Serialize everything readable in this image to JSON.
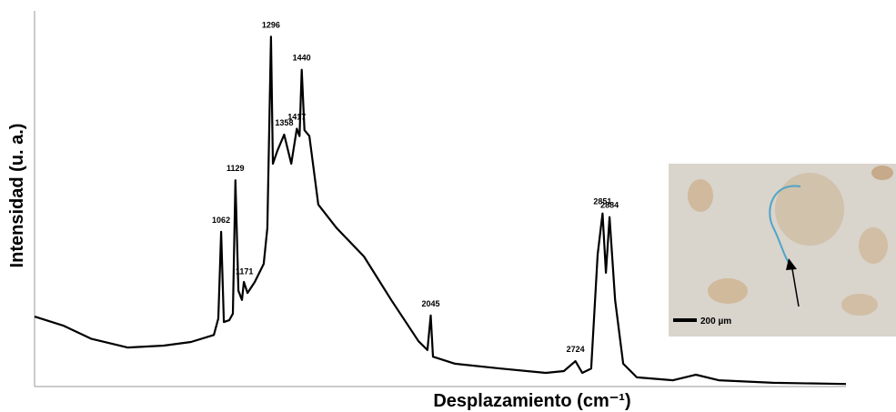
{
  "chart_data": {
    "type": "line",
    "x_label": "Desplazamiento  (cm⁻¹)",
    "y_label": "Intensidad (u. a.)",
    "xlim": [
      187,
      3993
    ],
    "ylim": [
      0,
      100
    ],
    "x": [
      187,
      324,
      452,
      623,
      793,
      921,
      1028,
      1049,
      1062,
      1075,
      1100,
      1117,
      1129,
      1143,
      1160,
      1169,
      1186,
      1220,
      1262,
      1279,
      1296,
      1305,
      1326,
      1358,
      1391,
      1417,
      1430,
      1440,
      1453,
      1476,
      1518,
      1604,
      1732,
      1860,
      1988,
      2030,
      2045,
      2056,
      2159,
      2372,
      2585,
      2670,
      2724,
      2756,
      2798,
      2828,
      2851,
      2867,
      2884,
      2910,
      2948,
      3012,
      3182,
      3289,
      3396,
      3652,
      3993
    ],
    "series": [
      {
        "color": "#000000",
        "values": [
          19,
          16.5,
          13,
          10.6,
          11.1,
          12.1,
          14,
          18.5,
          42,
          17.5,
          18,
          19.8,
          56,
          26,
          23.5,
          28.4,
          25.4,
          28.4,
          33.3,
          43,
          95,
          60.5,
          64,
          68.4,
          60.5,
          70,
          68,
          86,
          69.6,
          68,
          49.4,
          43,
          35.3,
          23.5,
          12.3,
          9.9,
          19.3,
          8.1,
          6.2,
          4.9,
          3.7,
          4.2,
          6.9,
          3.7,
          4.9,
          35.8,
          47,
          30.9,
          46,
          23.5,
          6.2,
          2.5,
          1.7,
          3.2,
          1.7,
          1,
          0.7
        ]
      }
    ],
    "peaks": [
      1062,
      1129,
      1171,
      1296,
      1358,
      1417,
      1440,
      2045,
      2724,
      2851,
      2884
    ]
  },
  "inset": {
    "scale_label": "200 µm"
  }
}
